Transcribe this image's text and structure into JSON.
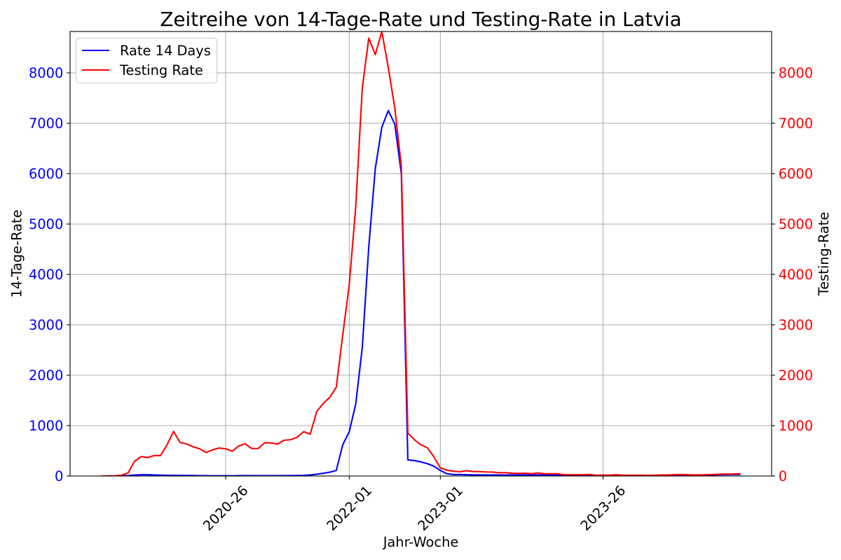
{
  "chart_data": {
    "type": "line",
    "title": "Zeitreihe von 14-Tage-Rate und Testing-Rate in Latvia",
    "xlabel": "Jahr-Woche",
    "ylabel": "14-Tage-Rate",
    "y2label": "Testing-Rate",
    "xlim": [
      -4.9,
      102.9
    ],
    "ylim": [
      0,
      8820
    ],
    "y2lim": [
      0,
      8820
    ],
    "grid": true,
    "legend": {
      "placement": "top-left"
    },
    "x_ticks": {
      "positions": [
        19,
        38,
        52,
        77
      ],
      "labels": [
        "2020-26",
        "2022-01",
        "2023-01",
        "2023-26"
      ]
    },
    "y_ticks": [
      0,
      1000,
      2000,
      3000,
      4000,
      5000,
      6000,
      7000,
      8000
    ],
    "y_tick_labels": [
      "0",
      "1000",
      "2000",
      "3000",
      "4000",
      "5000",
      "6000",
      "7000",
      "8000"
    ],
    "y2_ticks": [
      0,
      1000,
      2000,
      3000,
      4000,
      5000,
      6000,
      7000,
      8000
    ],
    "y2_tick_labels": [
      "0",
      "1000",
      "2000",
      "3000",
      "4000",
      "5000",
      "6000",
      "7000",
      "8000"
    ],
    "series": [
      {
        "name": "Rate 14 Days",
        "secondary_y": false,
        "color": "#0000ff",
        "values": [
          0,
          0,
          1,
          3,
          8,
          18,
          25,
          25,
          20,
          16,
          14,
          12,
          12,
          10,
          9,
          7,
          6,
          5,
          5,
          5,
          5,
          7,
          8,
          6,
          6,
          6,
          7,
          7,
          8,
          8,
          9,
          12,
          20,
          35,
          55,
          75,
          110,
          620,
          880,
          1430,
          2550,
          4550,
          6100,
          6920,
          7250,
          6980,
          6000,
          320,
          305,
          280,
          245,
          195,
          110,
          45,
          30,
          28,
          25,
          22,
          22,
          20,
          20,
          20,
          18,
          20,
          22,
          20,
          18,
          22,
          20,
          18,
          15,
          12,
          12,
          12,
          12,
          15,
          8,
          10,
          10,
          15,
          10,
          10,
          10,
          10,
          10,
          12,
          15,
          18,
          20,
          22,
          20,
          18,
          18,
          20,
          22,
          25,
          28,
          30,
          32
        ]
      },
      {
        "name": "Testing Rate",
        "secondary_y": true,
        "color": "#ff0000",
        "values": [
          0,
          2,
          5,
          15,
          60,
          290,
          385,
          365,
          405,
          405,
          620,
          885,
          665,
          635,
          580,
          540,
          465,
          520,
          555,
          540,
          490,
          595,
          640,
          545,
          545,
          660,
          655,
          635,
          710,
          720,
          770,
          880,
          830,
          1280,
          1440,
          1560,
          1760,
          2800,
          3800,
          5350,
          7700,
          8690,
          8360,
          8820,
          8100,
          7300,
          6150,
          850,
          720,
          620,
          560,
          380,
          160,
          115,
          95,
          85,
          105,
          90,
          88,
          80,
          78,
          65,
          65,
          55,
          52,
          55,
          45,
          60,
          45,
          45,
          45,
          25,
          25,
          25,
          25,
          30,
          12,
          18,
          15,
          25,
          15,
          15,
          15,
          15,
          12,
          15,
          20,
          20,
          25,
          28,
          25,
          22,
          22,
          25,
          30,
          35,
          38,
          40,
          45
        ]
      }
    ]
  }
}
